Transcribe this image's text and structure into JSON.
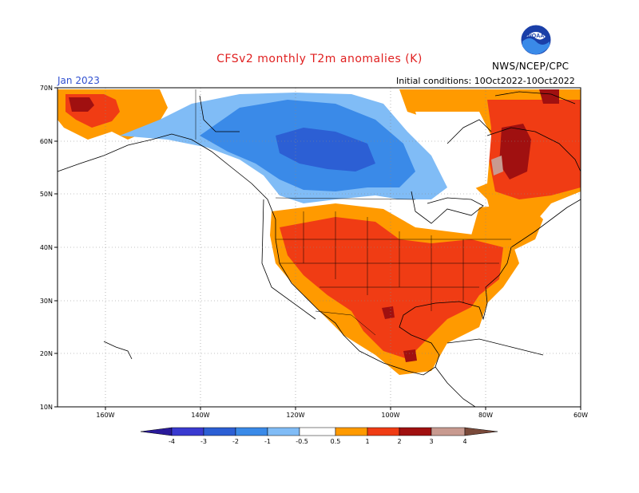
{
  "header": {
    "title": "CFSv2 monthly T2m anomalies (K)",
    "month": "Jan 2023",
    "initial_conditions": "Initial conditions: 10Oct2022-10Oct2022",
    "source": "NWS/NCEP/CPC",
    "logo_text": "NOAA"
  },
  "map": {
    "lat_labels": [
      "70N",
      "60N",
      "50N",
      "40N",
      "30N",
      "20N",
      "10N"
    ],
    "lon_labels": [
      "160W",
      "140W",
      "120W",
      "100W",
      "80W",
      "60W"
    ]
  },
  "colorbar": {
    "labels": [
      "-4",
      "-3",
      "-2",
      "-1",
      "-0.5",
      "0.5",
      "1",
      "2",
      "3",
      "4"
    ],
    "colors": {
      "lt_neg4": "#2a1a9a",
      "neg4_neg3": "#3a3ad0",
      "neg3_neg2": "#2c5fd4",
      "neg2_neg1": "#3a8ae8",
      "neg1_neg05": "#80bcf6",
      "neutral": "#ffffff",
      "p05_1": "#ff9a00",
      "p1_2": "#f03c14",
      "p2_3": "#a01010",
      "p3_4": "#c89a90",
      "gt4": "#7a4a3a"
    }
  }
}
